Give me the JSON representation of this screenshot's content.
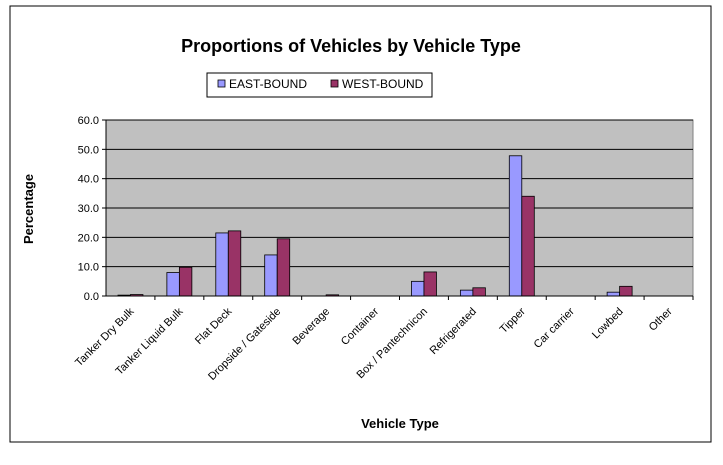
{
  "chart_data": {
    "type": "bar",
    "title": "Proportions of Vehicles by Vehicle Type",
    "xlabel": "Vehicle Type",
    "ylabel": "Percentage",
    "ylim": [
      0,
      60
    ],
    "yticks": [
      "0.0",
      "10.0",
      "20.0",
      "30.0",
      "40.0",
      "50.0",
      "60.0"
    ],
    "grid": true,
    "legend_position": "top",
    "categories": [
      "Tanker Dry Bulk",
      "Tanker Liquid Bulk",
      "Flat Deck",
      "Dropside / Gateside",
      "Beverage",
      "Container",
      "Box / Pantechnicon",
      "Refrigerated",
      "Tipper",
      "Car carrier",
      "Lowbed",
      "Other"
    ],
    "series": [
      {
        "name": "EAST-BOUND",
        "color": "#9999ff",
        "values": [
          0.3,
          8.0,
          21.5,
          14.0,
          0.0,
          0.0,
          5.0,
          2.0,
          47.8,
          0.0,
          1.3,
          0.0
        ]
      },
      {
        "name": "WEST-BOUND",
        "color": "#993366",
        "values": [
          0.5,
          9.8,
          22.2,
          19.5,
          0.4,
          0.0,
          8.2,
          2.8,
          34.0,
          0.0,
          3.3,
          0.0
        ]
      }
    ],
    "plot_background": "#c0c0c0"
  }
}
